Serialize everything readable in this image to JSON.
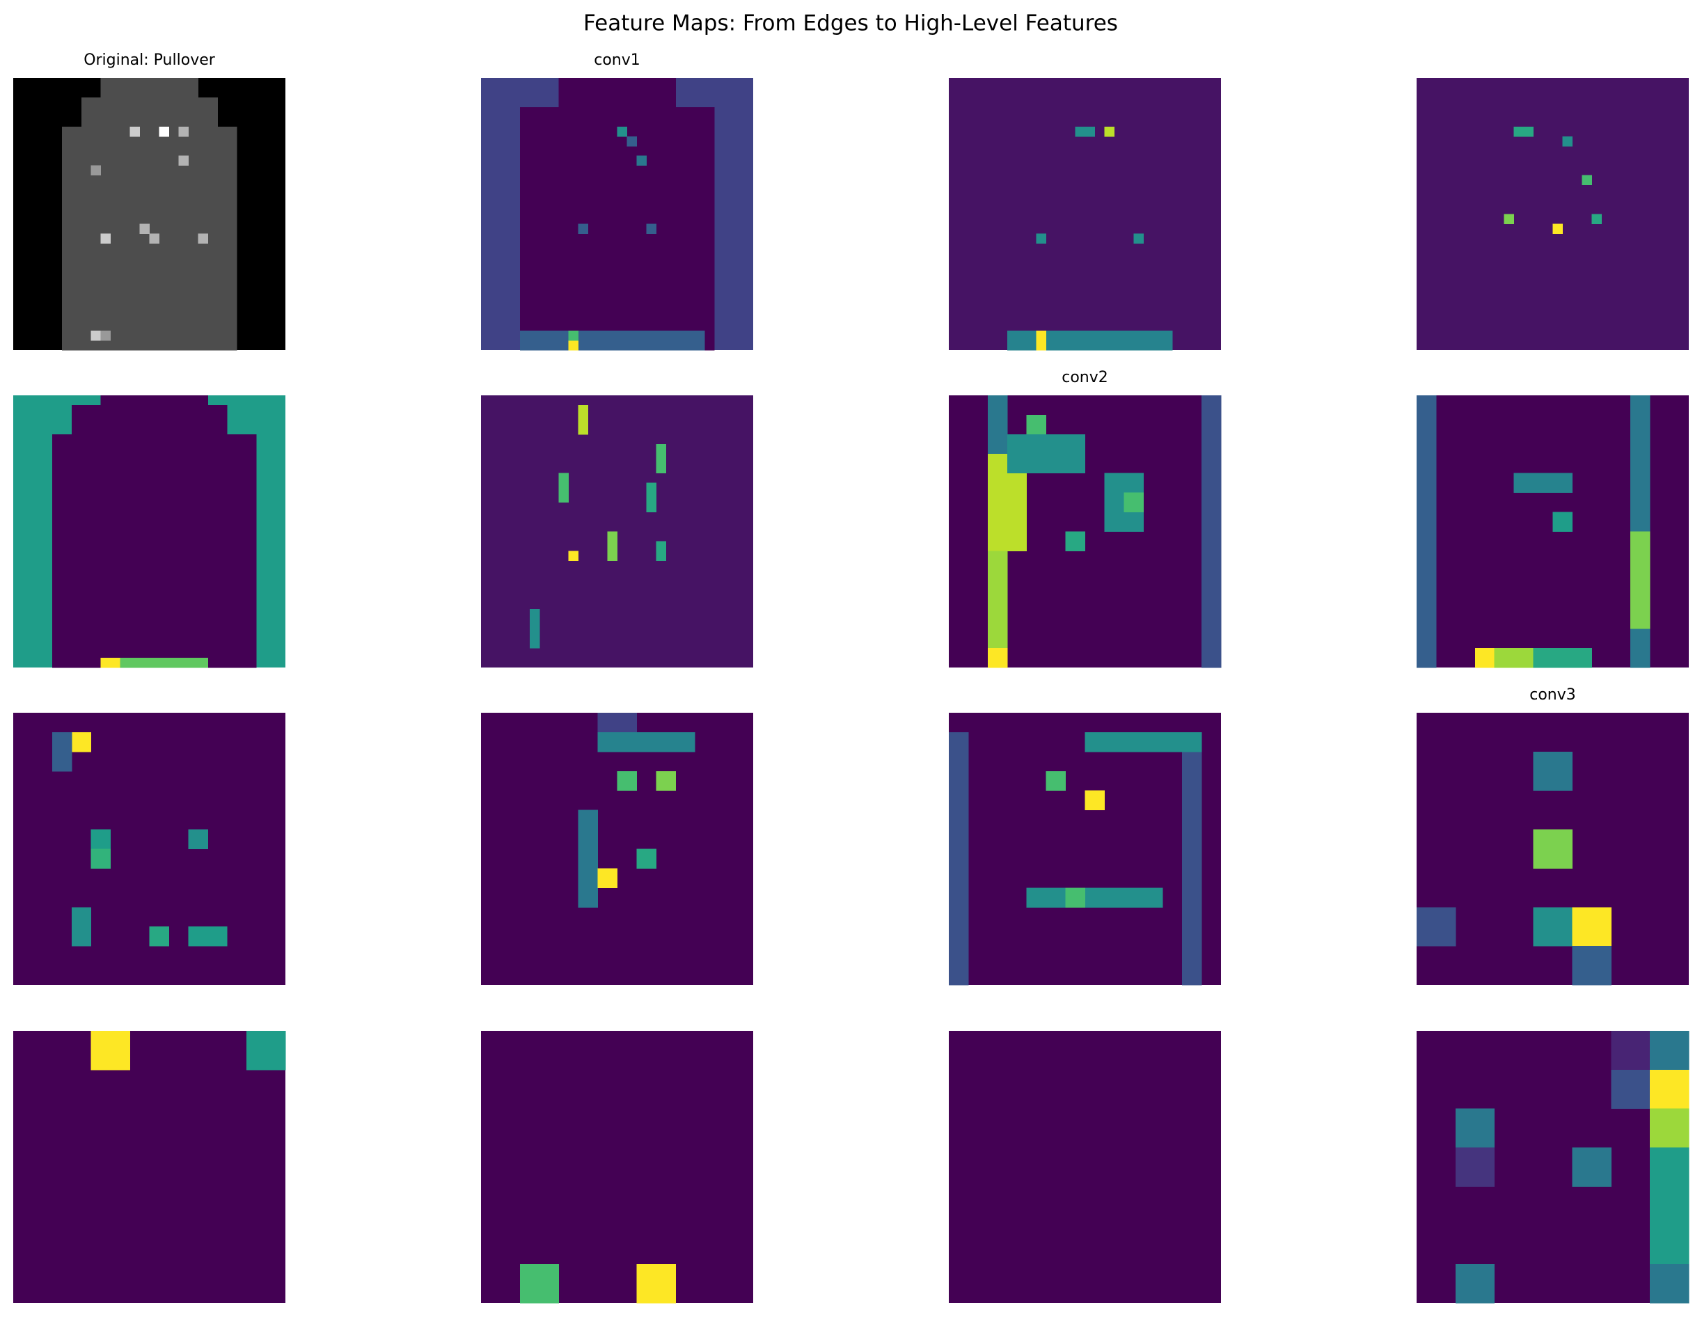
{
  "chart_data": {
    "type": "heatmap",
    "title": "Feature Maps: From Edges to High-Level Features",
    "panels": [
      {
        "title": "Original: Pullover",
        "cmap": "gray",
        "size": 28,
        "background": 0,
        "blocks": [
          [
            0,
            1,
            9,
            18,
            0.3
          ],
          [
            2,
            4,
            7,
            20,
            0.3
          ],
          [
            5,
            27,
            5,
            22,
            0.3
          ],
          [
            5,
            5,
            12,
            12,
            0.8
          ],
          [
            5,
            5,
            15,
            15,
            1
          ],
          [
            5,
            5,
            17,
            17,
            0.7
          ],
          [
            8,
            8,
            17,
            17,
            0.7
          ],
          [
            9,
            9,
            8,
            8,
            0.6
          ],
          [
            16,
            16,
            9,
            9,
            0.8
          ],
          [
            15,
            15,
            13,
            13,
            0.7
          ],
          [
            16,
            16,
            14,
            14,
            0.7
          ],
          [
            16,
            16,
            19,
            19,
            0.7
          ],
          [
            26,
            26,
            8,
            8,
            0.8
          ],
          [
            26,
            26,
            9,
            9,
            0.6
          ]
        ]
      },
      {
        "title": "conv1",
        "cmap": "viridis",
        "size": 28,
        "background": 0.2,
        "blocks": [
          [
            0,
            2,
            8,
            19,
            0
          ],
          [
            3,
            27,
            4,
            23,
            0
          ],
          [
            5,
            5,
            14,
            14,
            0.5
          ],
          [
            6,
            6,
            15,
            15,
            0.3
          ],
          [
            8,
            8,
            16,
            16,
            0.4
          ],
          [
            15,
            15,
            10,
            10,
            0.3
          ],
          [
            15,
            15,
            17,
            17,
            0.3
          ],
          [
            26,
            27,
            4,
            22,
            0.3
          ],
          [
            27,
            27,
            9,
            9,
            1
          ],
          [
            26,
            26,
            9,
            9,
            0.7
          ]
        ]
      },
      {
        "cmap": "viridis",
        "size": 28,
        "background": 0.05,
        "blocks": [
          [
            5,
            5,
            13,
            14,
            0.5
          ],
          [
            5,
            5,
            16,
            16,
            0.9
          ],
          [
            16,
            16,
            9,
            9,
            0.5
          ],
          [
            16,
            16,
            19,
            19,
            0.5
          ],
          [
            26,
            27,
            6,
            22,
            0.45
          ],
          [
            26,
            27,
            9,
            9,
            1
          ]
        ]
      },
      {
        "cmap": "viridis",
        "size": 28,
        "background": 0.05,
        "blocks": [
          [
            5,
            5,
            10,
            11,
            0.6
          ],
          [
            6,
            6,
            15,
            15,
            0.5
          ],
          [
            10,
            10,
            17,
            17,
            0.7
          ],
          [
            14,
            14,
            9,
            9,
            0.8
          ],
          [
            14,
            14,
            18,
            18,
            0.6
          ],
          [
            15,
            15,
            14,
            14,
            1
          ]
        ]
      },
      {
        "cmap": "viridis",
        "size": 28,
        "background": 0.55,
        "blocks": [
          [
            0,
            0,
            9,
            19,
            0
          ],
          [
            1,
            3,
            6,
            21,
            0
          ],
          [
            4,
            26,
            4,
            24,
            0
          ],
          [
            27,
            27,
            4,
            24,
            0
          ],
          [
            27,
            27,
            9,
            10,
            1
          ],
          [
            27,
            27,
            11,
            19,
            0.75
          ]
        ]
      },
      {
        "cmap": "viridis",
        "size": 28,
        "background": 0.05,
        "blocks": [
          [
            1,
            3,
            10,
            10,
            0.9
          ],
          [
            8,
            10,
            8,
            8,
            0.7
          ],
          [
            16,
            16,
            9,
            9,
            1
          ],
          [
            14,
            16,
            13,
            13,
            0.8
          ],
          [
            5,
            7,
            18,
            18,
            0.7
          ],
          [
            9,
            11,
            17,
            17,
            0.6
          ],
          [
            15,
            16,
            18,
            18,
            0.6
          ],
          [
            22,
            25,
            5,
            5,
            0.5
          ]
        ]
      },
      {
        "title": "conv2",
        "cmap": "viridis",
        "size": 14,
        "background": 0,
        "blocks": [
          [
            0,
            13,
            2,
            2,
            0.4
          ],
          [
            3,
            7,
            2,
            3,
            0.9
          ],
          [
            8,
            12,
            2,
            2,
            0.85
          ],
          [
            13,
            13,
            2,
            2,
            1
          ],
          [
            1,
            2,
            4,
            4,
            0.7
          ],
          [
            2,
            3,
            3,
            6,
            0.5
          ],
          [
            4,
            6,
            8,
            9,
            0.5
          ],
          [
            5,
            5,
            9,
            9,
            0.7
          ],
          [
            7,
            7,
            6,
            6,
            0.6
          ],
          [
            0,
            13,
            13,
            13,
            0.25
          ]
        ]
      },
      {
        "cmap": "viridis",
        "size": 14,
        "background": 0,
        "blocks": [
          [
            0,
            13,
            0,
            0,
            0.3
          ],
          [
            0,
            13,
            11,
            11,
            0.4
          ],
          [
            7,
            11,
            11,
            11,
            0.8
          ],
          [
            13,
            13,
            3,
            3,
            1
          ],
          [
            13,
            13,
            4,
            5,
            0.85
          ],
          [
            13,
            13,
            6,
            8,
            0.6
          ],
          [
            4,
            4,
            5,
            7,
            0.45
          ],
          [
            6,
            6,
            7,
            7,
            0.55
          ]
        ]
      },
      {
        "cmap": "viridis",
        "size": 14,
        "background": 0,
        "blocks": [
          [
            1,
            1,
            3,
            3,
            1
          ],
          [
            1,
            2,
            2,
            2,
            0.3
          ],
          [
            6,
            6,
            4,
            4,
            0.55
          ],
          [
            7,
            7,
            4,
            4,
            0.65
          ],
          [
            6,
            6,
            9,
            9,
            0.5
          ],
          [
            10,
            11,
            3,
            3,
            0.5
          ],
          [
            11,
            11,
            7,
            7,
            0.6
          ],
          [
            11,
            11,
            9,
            10,
            0.55
          ]
        ]
      },
      {
        "cmap": "viridis",
        "size": 14,
        "background": 0,
        "blocks": [
          [
            0,
            0,
            6,
            7,
            0.2
          ],
          [
            1,
            1,
            6,
            10,
            0.45
          ],
          [
            3,
            3,
            7,
            7,
            0.7
          ],
          [
            3,
            3,
            9,
            9,
            0.8
          ],
          [
            5,
            9,
            5,
            5,
            0.4
          ],
          [
            7,
            7,
            8,
            8,
            0.6
          ],
          [
            8,
            8,
            6,
            6,
            1
          ]
        ]
      },
      {
        "cmap": "viridis",
        "size": 14,
        "background": 0,
        "blocks": [
          [
            1,
            13,
            0,
            0,
            0.25
          ],
          [
            1,
            13,
            12,
            12,
            0.25
          ],
          [
            1,
            1,
            7,
            12,
            0.5
          ],
          [
            3,
            3,
            5,
            5,
            0.7
          ],
          [
            4,
            4,
            7,
            7,
            1
          ],
          [
            9,
            9,
            4,
            10,
            0.5
          ],
          [
            9,
            9,
            6,
            6,
            0.7
          ]
        ]
      },
      {
        "title": "conv3",
        "cmap": "viridis",
        "size": 7,
        "background": 0,
        "blocks": [
          [
            1,
            1,
            3,
            3,
            0.4
          ],
          [
            3,
            3,
            3,
            3,
            0.8
          ],
          [
            5,
            5,
            3,
            3,
            0.5
          ],
          [
            5,
            5,
            4,
            4,
            1
          ],
          [
            5,
            5,
            0,
            0,
            0.25
          ],
          [
            6,
            6,
            4,
            4,
            0.3
          ]
        ]
      },
      {
        "cmap": "viridis",
        "size": 7,
        "background": 0,
        "blocks": [
          [
            0,
            0,
            2,
            2,
            1
          ],
          [
            0,
            0,
            6,
            6,
            0.55
          ]
        ]
      },
      {
        "cmap": "viridis",
        "size": 7,
        "background": 0,
        "blocks": [
          [
            6,
            6,
            1,
            1,
            0.7
          ],
          [
            6,
            6,
            4,
            4,
            1
          ]
        ]
      },
      {
        "cmap": "viridis",
        "size": 7,
        "background": 0,
        "blocks": []
      },
      {
        "cmap": "viridis",
        "size": 7,
        "background": 0,
        "blocks": [
          [
            0,
            0,
            5,
            5,
            0.1
          ],
          [
            0,
            0,
            6,
            6,
            0.4
          ],
          [
            1,
            1,
            5,
            5,
            0.25
          ],
          [
            1,
            1,
            6,
            6,
            1
          ],
          [
            2,
            2,
            6,
            6,
            0.85
          ],
          [
            3,
            5,
            6,
            6,
            0.55
          ],
          [
            6,
            6,
            6,
            6,
            0.4
          ],
          [
            2,
            2,
            1,
            1,
            0.4
          ],
          [
            3,
            3,
            1,
            1,
            0.15
          ],
          [
            3,
            3,
            4,
            4,
            0.4
          ],
          [
            6,
            6,
            1,
            1,
            0.4
          ]
        ]
      }
    ]
  }
}
